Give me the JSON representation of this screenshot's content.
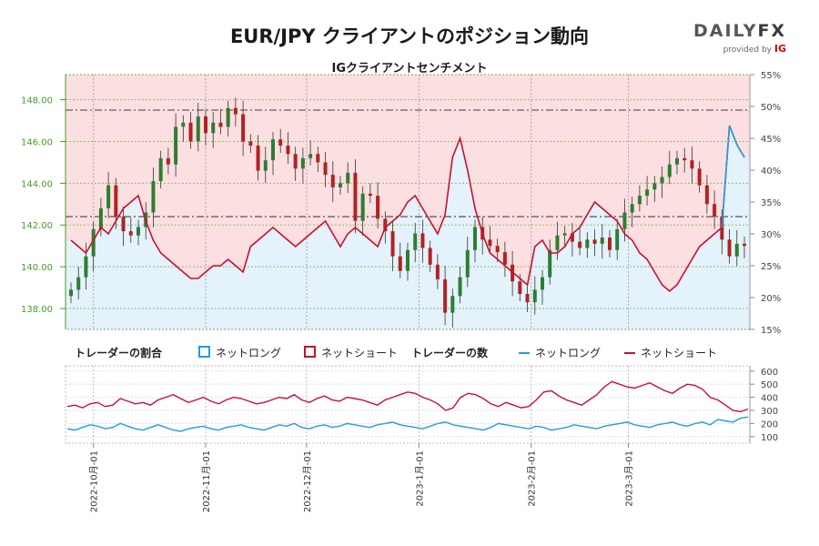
{
  "header": {
    "title": "EUR/JPY クライアントのポジション動向",
    "subtitle": "IGクライアントセンチメント"
  },
  "logo": {
    "brand_a": "DAILY",
    "brand_b": "FX",
    "provided_by": "provided by",
    "ig": "IG"
  },
  "legend": {
    "ratio_title": "トレーダーの割合",
    "net_long": "ネットロング",
    "net_short": "ネットショート",
    "count_title": "トレーダーの数"
  },
  "colors": {
    "long": "#1f9ee0",
    "short": "#c8102e",
    "up_candle": "#2e7d32",
    "down_candle": "#b22222",
    "price_axis": "#4a9a2a"
  },
  "chart_data": [
    {
      "type": "candlestick+area",
      "name": "price_and_ratio",
      "price_axis": {
        "ticks": [
          "138.00",
          "140.00",
          "142.00",
          "144.00",
          "146.00",
          "148.00"
        ],
        "range": [
          137.0,
          149.2
        ],
        "side": "left"
      },
      "ratio_axis": {
        "ticks": [
          "15%",
          "20%",
          "25%",
          "30%",
          "35%",
          "40%",
          "45%",
          "50%",
          "55%"
        ],
        "range": [
          15,
          55
        ],
        "side": "right"
      },
      "reference_lines": {
        "price_dashdot": [
          147.5,
          142.4
        ]
      },
      "x_ticks": [
        "2022-10月-01",
        "2022-11月-01",
        "2022-12月-01",
        "2023-1月-01",
        "2023-2月-01",
        "2023-3月-01"
      ],
      "close_series": [
        138.9,
        139.5,
        140.5,
        141.8,
        142.8,
        143.9,
        142.4,
        141.7,
        141.5,
        141.9,
        142.6,
        144.1,
        145.2,
        144.9,
        146.7,
        146.9,
        146.0,
        147.2,
        146.4,
        146.9,
        146.7,
        147.6,
        147.3,
        146.0,
        145.8,
        144.6,
        145.1,
        146.1,
        145.8,
        145.4,
        144.7,
        145.2,
        145.4,
        145.0,
        144.4,
        143.8,
        144.0,
        144.5,
        142.2,
        143.5,
        143.4,
        142.3,
        141.7,
        140.5,
        139.8,
        140.8,
        141.6,
        140.9,
        140.1,
        139.4,
        137.8,
        138.6,
        139.5,
        140.8,
        141.9,
        141.3,
        141.0,
        140.7,
        140.1,
        139.3,
        138.7,
        138.3,
        138.9,
        139.5,
        140.8,
        141.5,
        141.6,
        141.2,
        140.9,
        141.3,
        141.1,
        141.4,
        140.8,
        141.8,
        142.6,
        143.0,
        143.4,
        143.7,
        144.0,
        144.3,
        144.9,
        145.2,
        145.1,
        144.7,
        143.9,
        143.0,
        142.4,
        141.3,
        140.5,
        141.1,
        141.0
      ],
      "net_long_pct": [
        29,
        28,
        27,
        29,
        31,
        30,
        32,
        34,
        35,
        36,
        32,
        29,
        27,
        26,
        25,
        24,
        23,
        23,
        24,
        25,
        25,
        26,
        25,
        24,
        28,
        29,
        30,
        31,
        30,
        29,
        28,
        29,
        30,
        31,
        32,
        30,
        28,
        30,
        31,
        30,
        29,
        28,
        31,
        32,
        33,
        35,
        36,
        34,
        32,
        30,
        33,
        42,
        45,
        40,
        34,
        30,
        27,
        26,
        25,
        24,
        23,
        22,
        28,
        29,
        27,
        27,
        28,
        30,
        31,
        33,
        35,
        34,
        33,
        32,
        30,
        29,
        27,
        26,
        24,
        22,
        21,
        22,
        24,
        26,
        28,
        29,
        30,
        31,
        47,
        44,
        42
      ]
    },
    {
      "type": "line",
      "name": "trader_counts",
      "y_axis": {
        "ticks": [
          "100",
          "200",
          "300",
          "400",
          "500",
          "600"
        ],
        "range": [
          50,
          640
        ],
        "side": "right"
      },
      "series": [
        {
          "name": "ネットロング",
          "values": [
            160,
            150,
            170,
            190,
            180,
            160,
            170,
            200,
            180,
            160,
            150,
            170,
            190,
            170,
            150,
            140,
            160,
            170,
            180,
            160,
            150,
            170,
            180,
            190,
            170,
            160,
            150,
            170,
            190,
            180,
            200,
            170,
            160,
            180,
            190,
            170,
            180,
            200,
            190,
            180,
            170,
            190,
            200,
            210,
            190,
            180,
            170,
            160,
            180,
            200,
            210,
            190,
            180,
            170,
            160,
            150,
            170,
            200,
            190,
            180,
            170,
            160,
            180,
            170,
            150,
            160,
            170,
            190,
            180,
            170,
            160,
            180,
            190,
            200,
            210,
            190,
            180,
            170,
            190,
            200,
            210,
            190,
            180,
            200,
            210,
            190,
            230,
            220,
            210,
            240,
            250
          ]
        },
        {
          "name": "ネットショート",
          "values": [
            330,
            340,
            320,
            350,
            360,
            330,
            340,
            390,
            370,
            350,
            360,
            340,
            380,
            400,
            420,
            390,
            360,
            380,
            400,
            370,
            350,
            380,
            400,
            390,
            370,
            350,
            360,
            380,
            400,
            390,
            420,
            380,
            360,
            390,
            410,
            380,
            370,
            400,
            390,
            380,
            360,
            340,
            380,
            400,
            420,
            440,
            430,
            400,
            380,
            350,
            300,
            320,
            400,
            430,
            420,
            390,
            350,
            330,
            360,
            340,
            320,
            330,
            380,
            440,
            450,
            410,
            380,
            360,
            340,
            380,
            420,
            480,
            520,
            500,
            480,
            470,
            490,
            510,
            480,
            450,
            430,
            470,
            500,
            490,
            460,
            400,
            380,
            340,
            300,
            290,
            310
          ]
        }
      ]
    }
  ]
}
